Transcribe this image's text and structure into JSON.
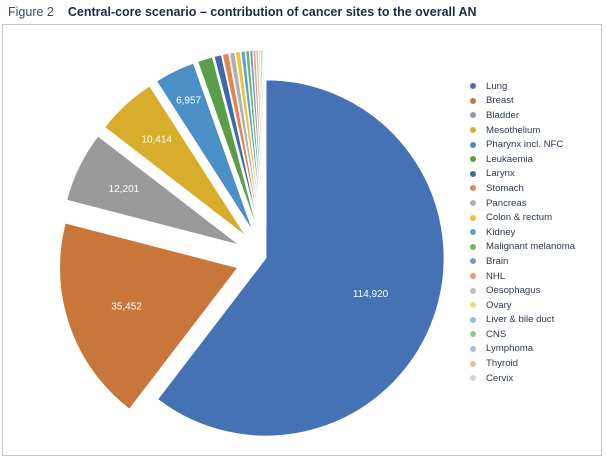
{
  "figure": {
    "number": "Figure 2",
    "title": "Central-core scenario – contribution of cancer sites to the overall AN"
  },
  "chart_data": {
    "type": "pie",
    "title": "Central-core scenario – contribution of cancer sites to the overall AN",
    "exploded": true,
    "legend_position": "right",
    "slices": [
      {
        "label": "Lung",
        "value": 114920,
        "display": "114,920",
        "color": "#4472b4"
      },
      {
        "label": "Breast",
        "value": 35452,
        "display": "35,452",
        "color": "#c8763a"
      },
      {
        "label": "Bladder",
        "value": 12201,
        "display": "12,201",
        "color": "#9a9a9a"
      },
      {
        "label": "Mesothelium",
        "value": 10414,
        "display": "10,414",
        "color": "#d8ad2c"
      },
      {
        "label": "Pharynx incl. NFC",
        "value": 6957,
        "display": "6,957",
        "color": "#4b8fc7"
      },
      {
        "label": "Leukaemia",
        "value": 2600,
        "display": "",
        "color": "#5a9e49"
      },
      {
        "label": "Larynx",
        "value": 1250,
        "display": "",
        "color": "#3f6aa8"
      },
      {
        "label": "Stomach",
        "value": 1050,
        "display": "",
        "color": "#e5844e"
      },
      {
        "label": "Pancreas",
        "value": 900,
        "display": "",
        "color": "#b0b0b0"
      },
      {
        "label": "Colon & rectum",
        "value": 800,
        "display": "",
        "color": "#f0c23a"
      },
      {
        "label": "Kidney",
        "value": 700,
        "display": "",
        "color": "#5aa3d8"
      },
      {
        "label": "Malignant melanoma",
        "value": 600,
        "display": "",
        "color": "#75b55d"
      },
      {
        "label": "Brain",
        "value": 500,
        "display": "",
        "color": "#7b98cc"
      },
      {
        "label": "NHL",
        "value": 420,
        "display": "",
        "color": "#eb9a72"
      },
      {
        "label": "Oesophagus",
        "value": 360,
        "display": "",
        "color": "#c0c0c0"
      },
      {
        "label": "Ovary",
        "value": 300,
        "display": "",
        "color": "#f6d67e"
      },
      {
        "label": "Liver & bile duct",
        "value": 250,
        "display": "",
        "color": "#8fbde4"
      },
      {
        "label": "CNS",
        "value": 200,
        "display": "",
        "color": "#94c983"
      },
      {
        "label": "Lymphoma",
        "value": 160,
        "display": "",
        "color": "#a9bde2"
      },
      {
        "label": "Thyroid",
        "value": 120,
        "display": "",
        "color": "#f2bba0"
      },
      {
        "label": "Cervix",
        "value": 100,
        "display": "",
        "color": "#d6d6d6"
      }
    ]
  }
}
